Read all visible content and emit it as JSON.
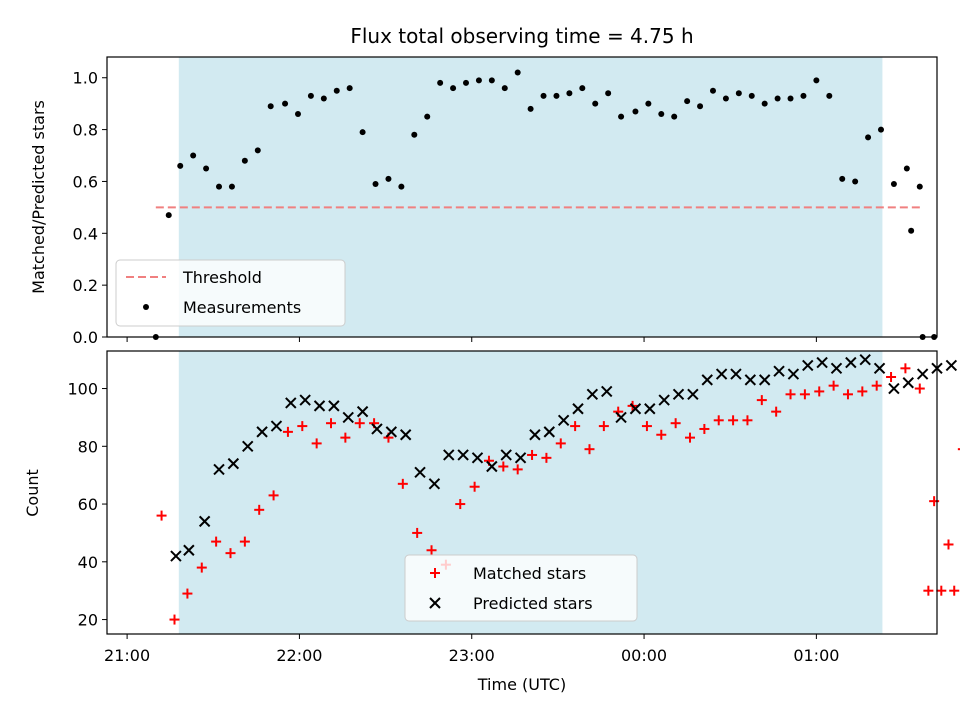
{
  "chart_data": [
    {
      "type": "scatter",
      "title": "Flux total observing time = 4.75 h",
      "ylabel": "Matched/Predicted stars",
      "xlabel": "",
      "ylim": [
        0,
        1.08
      ],
      "yticks": [
        0.0,
        0.2,
        0.4,
        0.6,
        0.8,
        1.0
      ],
      "ytick_labels": [
        "0.0",
        "0.2",
        "0.4",
        "0.6",
        "0.8",
        "1.0"
      ],
      "x_unit": "minutes after 21:00 UTC",
      "xlim": [
        -7,
        282
      ],
      "shaded_interval": [
        18,
        263
      ],
      "shade_color": "#add8e6",
      "threshold": {
        "name": "Threshold",
        "value": 0.5,
        "x_range": [
          10,
          277
        ],
        "color": "#f08080"
      },
      "legend": {
        "placement": "lower left",
        "entries": [
          "Threshold",
          "Measurements"
        ]
      },
      "series": [
        {
          "name": "Measurements",
          "color": "#000000",
          "x": [
            10,
            14.5,
            18.5,
            23,
            27.5,
            32,
            36.5,
            41,
            45.5,
            50,
            55,
            59.5,
            64,
            68.5,
            73,
            77.5,
            82,
            86.5,
            91,
            95.5,
            100,
            104.5,
            109,
            113.5,
            118,
            122.5,
            127,
            131.5,
            136,
            140.5,
            145,
            149.5,
            154,
            158.5,
            163,
            167.5,
            172,
            177,
            181.5,
            186,
            190.5,
            195,
            199.5,
            204,
            208.5,
            213,
            217.5,
            222,
            226.5,
            231,
            235.5,
            240,
            244.5,
            249,
            253.5,
            258,
            262.5,
            267,
            271.5,
            276
          ],
          "y": [
            0.0,
            0.47,
            0.66,
            0.7,
            0.65,
            0.58,
            0.58,
            0.68,
            0.72,
            0.89,
            0.9,
            0.86,
            0.93,
            0.92,
            0.95,
            0.96,
            0.79,
            0.59,
            0.61,
            0.58,
            0.78,
            0.85,
            0.98,
            0.96,
            0.98,
            0.99,
            0.99,
            0.96,
            1.02,
            0.88,
            0.93,
            0.93,
            0.94,
            0.96,
            0.9,
            0.94,
            0.85,
            0.87,
            0.9,
            0.86,
            0.85,
            0.91,
            0.89,
            0.95,
            0.92,
            0.94,
            0.93,
            0.9,
            0.92,
            0.92,
            0.93,
            0.99,
            0.93,
            0.61,
            0.6,
            0.77,
            0.8,
            0.59,
            0.65,
            0.58
          ]
        }
      ]
    },
    {
      "type": "scatter",
      "title": "",
      "xlabel": "Time (UTC)",
      "ylabel": "Count",
      "xlim": [
        -7,
        282
      ],
      "ylim": [
        15,
        113
      ],
      "yticks": [
        20,
        40,
        60,
        80,
        100
      ],
      "ytick_labels": [
        "20",
        "40",
        "60",
        "80",
        "100"
      ],
      "xticks_minutes": [
        0,
        60,
        120,
        180,
        240,
        300
      ],
      "xtick_labels": [
        "21:00",
        "22:00",
        "23:00",
        "00:00",
        "01:00",
        "02:00"
      ],
      "shaded_interval": [
        18,
        263
      ],
      "shade_color": "#add8e6",
      "legend": {
        "placement": "lower center",
        "entries": [
          "Matched stars",
          "Predicted stars"
        ]
      },
      "series": [
        {
          "name": "Matched stars",
          "marker": "plus",
          "color": "#ff0000",
          "x": [
            12,
            16.5,
            21,
            26,
            31,
            36,
            41,
            46,
            51,
            56,
            61,
            66,
            71,
            76,
            81,
            86,
            91,
            96,
            101,
            106,
            111,
            116,
            121,
            126,
            131,
            136,
            141,
            146,
            151,
            156,
            161,
            166,
            171,
            176,
            181,
            186,
            191,
            196,
            201,
            206,
            211,
            216,
            221,
            226,
            231,
            236,
            241,
            246,
            251,
            256,
            261,
            266,
            271,
            276,
            281,
            286,
            291,
            296
          ],
          "y": [
            56,
            20,
            29,
            38,
            47,
            43,
            47,
            58,
            63,
            85,
            87,
            81,
            88,
            83,
            88,
            88,
            83,
            67,
            50,
            44,
            39,
            60,
            66,
            75,
            73,
            72,
            77,
            76,
            81,
            87,
            79,
            87,
            92,
            94,
            87,
            84,
            88,
            83,
            86,
            89,
            89,
            89,
            96,
            92,
            98,
            98,
            99,
            101,
            98,
            99,
            101,
            104,
            107,
            100,
            61,
            46,
            79,
            84
          ]
        },
        {
          "name": "Predicted stars",
          "marker": "x",
          "color": "#000000",
          "x": [
            17,
            21.5,
            27,
            32,
            37,
            42,
            47,
            52,
            57,
            62,
            67,
            72,
            77,
            82,
            87,
            92,
            97,
            102,
            107,
            112,
            117,
            122,
            127,
            132,
            137,
            142,
            147,
            152,
            157,
            162,
            167,
            172,
            177,
            182,
            187,
            192,
            197,
            202,
            207,
            212,
            217,
            222,
            227,
            232,
            237,
            242,
            247,
            252,
            257,
            262,
            267,
            272,
            277,
            282,
            287,
            292
          ],
          "y": [
            42,
            44,
            54,
            72,
            74,
            80,
            85,
            87,
            95,
            96,
            94,
            94,
            90,
            92,
            86,
            85,
            84,
            71,
            67,
            77,
            77,
            76,
            73,
            77,
            76,
            84,
            85,
            89,
            93,
            98,
            99,
            90,
            93,
            93,
            96,
            98,
            98,
            103,
            105,
            105,
            103,
            103,
            106,
            105,
            108,
            109,
            107,
            109,
            110,
            107,
            100,
            102,
            105,
            107,
            108,
            84
          ]
        }
      ],
      "extra_matched_tail": {
        "x": [
          279,
          283.5,
          288
        ],
        "y": [
          30,
          30,
          30
        ]
      },
      "extra_predicted_tail": {
        "x": [
          292
        ],
        "y": [
          73
        ]
      }
    }
  ]
}
